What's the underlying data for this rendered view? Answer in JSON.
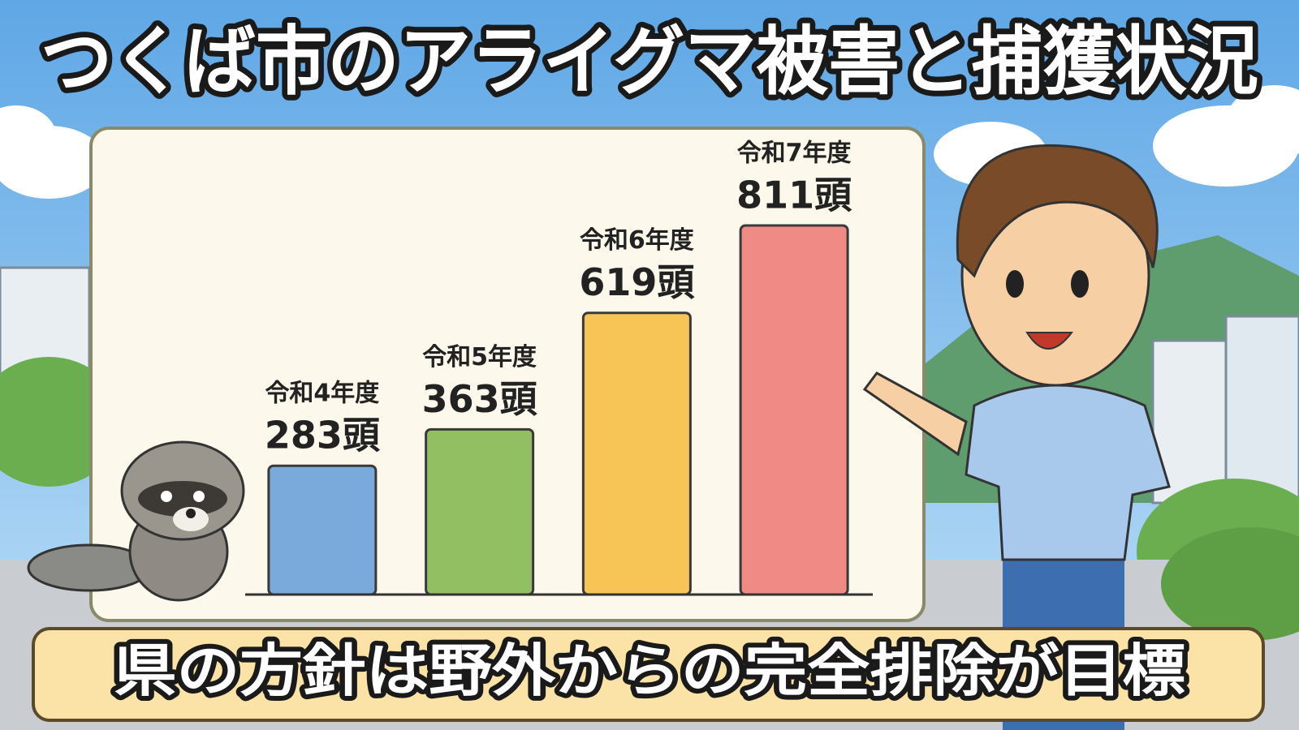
{
  "chart_data": {
    "type": "bar",
    "title": "つくば市のアライグマ被害と捕獲状況",
    "caption": "県の方針は野外からの完全排除が目標",
    "categories": [
      "令和4年度",
      "令和5年度",
      "令和6年度",
      "令和7年度"
    ],
    "values": [
      283,
      363,
      619,
      811
    ],
    "value_labels": [
      "283頭",
      "363頭",
      "619頭",
      "811頭"
    ],
    "colors": [
      "#7aa9dc",
      "#93bf63",
      "#f7c555",
      "#ef8a84"
    ]
  }
}
